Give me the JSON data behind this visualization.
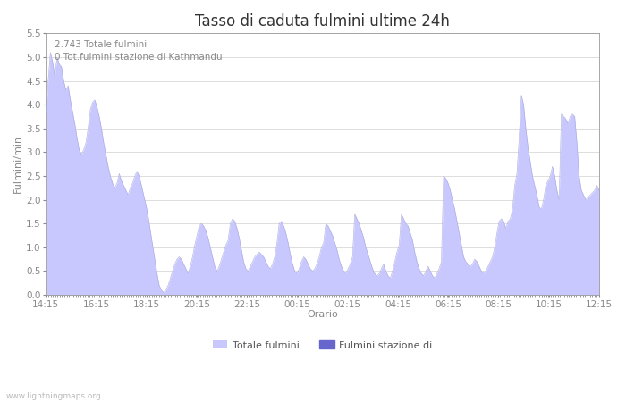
{
  "title": "Tasso di caduta fulmini ultime 24h",
  "xlabel": "Orario",
  "ylabel": "Fulmini/min",
  "annotation_line1": "2.743 Totale fulmini",
  "annotation_line2": "0 Tot.fulmini stazione di Kathmandu",
  "ylim": [
    0,
    5.5
  ],
  "yticks": [
    0.0,
    0.5,
    1.0,
    1.5,
    2.0,
    2.5,
    3.0,
    3.5,
    4.0,
    4.5,
    5.0,
    5.5
  ],
  "xtick_labels": [
    "14:15",
    "16:15",
    "18:15",
    "20:15",
    "22:15",
    "00:15",
    "02:15",
    "04:15",
    "06:15",
    "08:15",
    "10:15",
    "12:15"
  ],
  "fill_color": "#c8c8ff",
  "fill_color_edge": "#aaaadd",
  "fill_color2": "#6666cc",
  "legend_label1": "Totale fulmini",
  "legend_label2": "Fulmini stazione di",
  "watermark": "www.lightningmaps.org",
  "title_fontsize": 12,
  "label_fontsize": 8,
  "tick_fontsize": 7.5,
  "annotation_fontsize": 7.5,
  "bg_color": "#ffffff",
  "grid_color": "#dddddd",
  "spine_color": "#999999",
  "text_color": "#888888",
  "y_values": [
    3.8,
    4.5,
    5.1,
    4.9,
    4.6,
    5.0,
    4.85,
    4.8,
    4.5,
    4.3,
    4.4,
    4.1,
    3.85,
    3.6,
    3.3,
    3.05,
    2.95,
    3.05,
    3.2,
    3.5,
    3.9,
    4.05,
    4.1,
    3.95,
    3.75,
    3.5,
    3.2,
    2.95,
    2.7,
    2.5,
    2.35,
    2.25,
    2.35,
    2.55,
    2.4,
    2.3,
    2.2,
    2.1,
    2.25,
    2.35,
    2.5,
    2.6,
    2.5,
    2.3,
    2.1,
    1.9,
    1.65,
    1.35,
    1.05,
    0.75,
    0.45,
    0.2,
    0.1,
    0.05,
    0.1,
    0.2,
    0.35,
    0.5,
    0.65,
    0.75,
    0.8,
    0.75,
    0.65,
    0.55,
    0.45,
    0.6,
    0.8,
    1.05,
    1.25,
    1.45,
    1.5,
    1.45,
    1.35,
    1.2,
    1.0,
    0.8,
    0.6,
    0.5,
    0.6,
    0.75,
    0.9,
    1.05,
    1.15,
    1.5,
    1.6,
    1.55,
    1.4,
    1.2,
    0.95,
    0.7,
    0.55,
    0.5,
    0.6,
    0.7,
    0.8,
    0.85,
    0.9,
    0.85,
    0.8,
    0.7,
    0.6,
    0.55,
    0.65,
    0.8,
    1.1,
    1.5,
    1.55,
    1.45,
    1.3,
    1.1,
    0.85,
    0.65,
    0.5,
    0.45,
    0.55,
    0.7,
    0.8,
    0.75,
    0.65,
    0.55,
    0.5,
    0.55,
    0.65,
    0.8,
    1.0,
    1.1,
    1.5,
    1.45,
    1.35,
    1.25,
    1.1,
    0.95,
    0.75,
    0.6,
    0.5,
    0.45,
    0.55,
    0.65,
    0.8,
    1.7,
    1.6,
    1.5,
    1.35,
    1.2,
    1.0,
    0.85,
    0.7,
    0.55,
    0.45,
    0.4,
    0.45,
    0.55,
    0.65,
    0.5,
    0.4,
    0.35,
    0.5,
    0.7,
    0.9,
    1.05,
    1.7,
    1.6,
    1.5,
    1.45,
    1.3,
    1.15,
    0.9,
    0.7,
    0.55,
    0.45,
    0.4,
    0.5,
    0.6,
    0.5,
    0.4,
    0.35,
    0.45,
    0.55,
    0.7,
    2.5,
    2.45,
    2.35,
    2.2,
    2.0,
    1.8,
    1.55,
    1.3,
    1.05,
    0.8,
    0.7,
    0.65,
    0.6,
    0.65,
    0.75,
    0.7,
    0.6,
    0.5,
    0.45,
    0.5,
    0.6,
    0.7,
    0.8,
    1.0,
    1.3,
    1.55,
    1.6,
    1.55,
    1.4,
    1.55,
    1.6,
    1.8,
    2.3,
    2.55,
    3.3,
    4.2,
    4.0,
    3.5,
    3.1,
    2.8,
    2.5,
    2.3,
    2.1,
    1.85,
    1.8,
    2.0,
    2.3,
    2.4,
    2.5,
    2.7,
    2.5,
    2.2,
    2.0,
    3.8,
    3.75,
    3.7,
    3.6,
    3.75,
    3.8,
    3.75,
    3.2,
    2.5,
    2.2,
    2.1,
    2.0,
    2.05,
    2.1,
    2.15,
    2.2,
    2.3,
    2.2
  ]
}
